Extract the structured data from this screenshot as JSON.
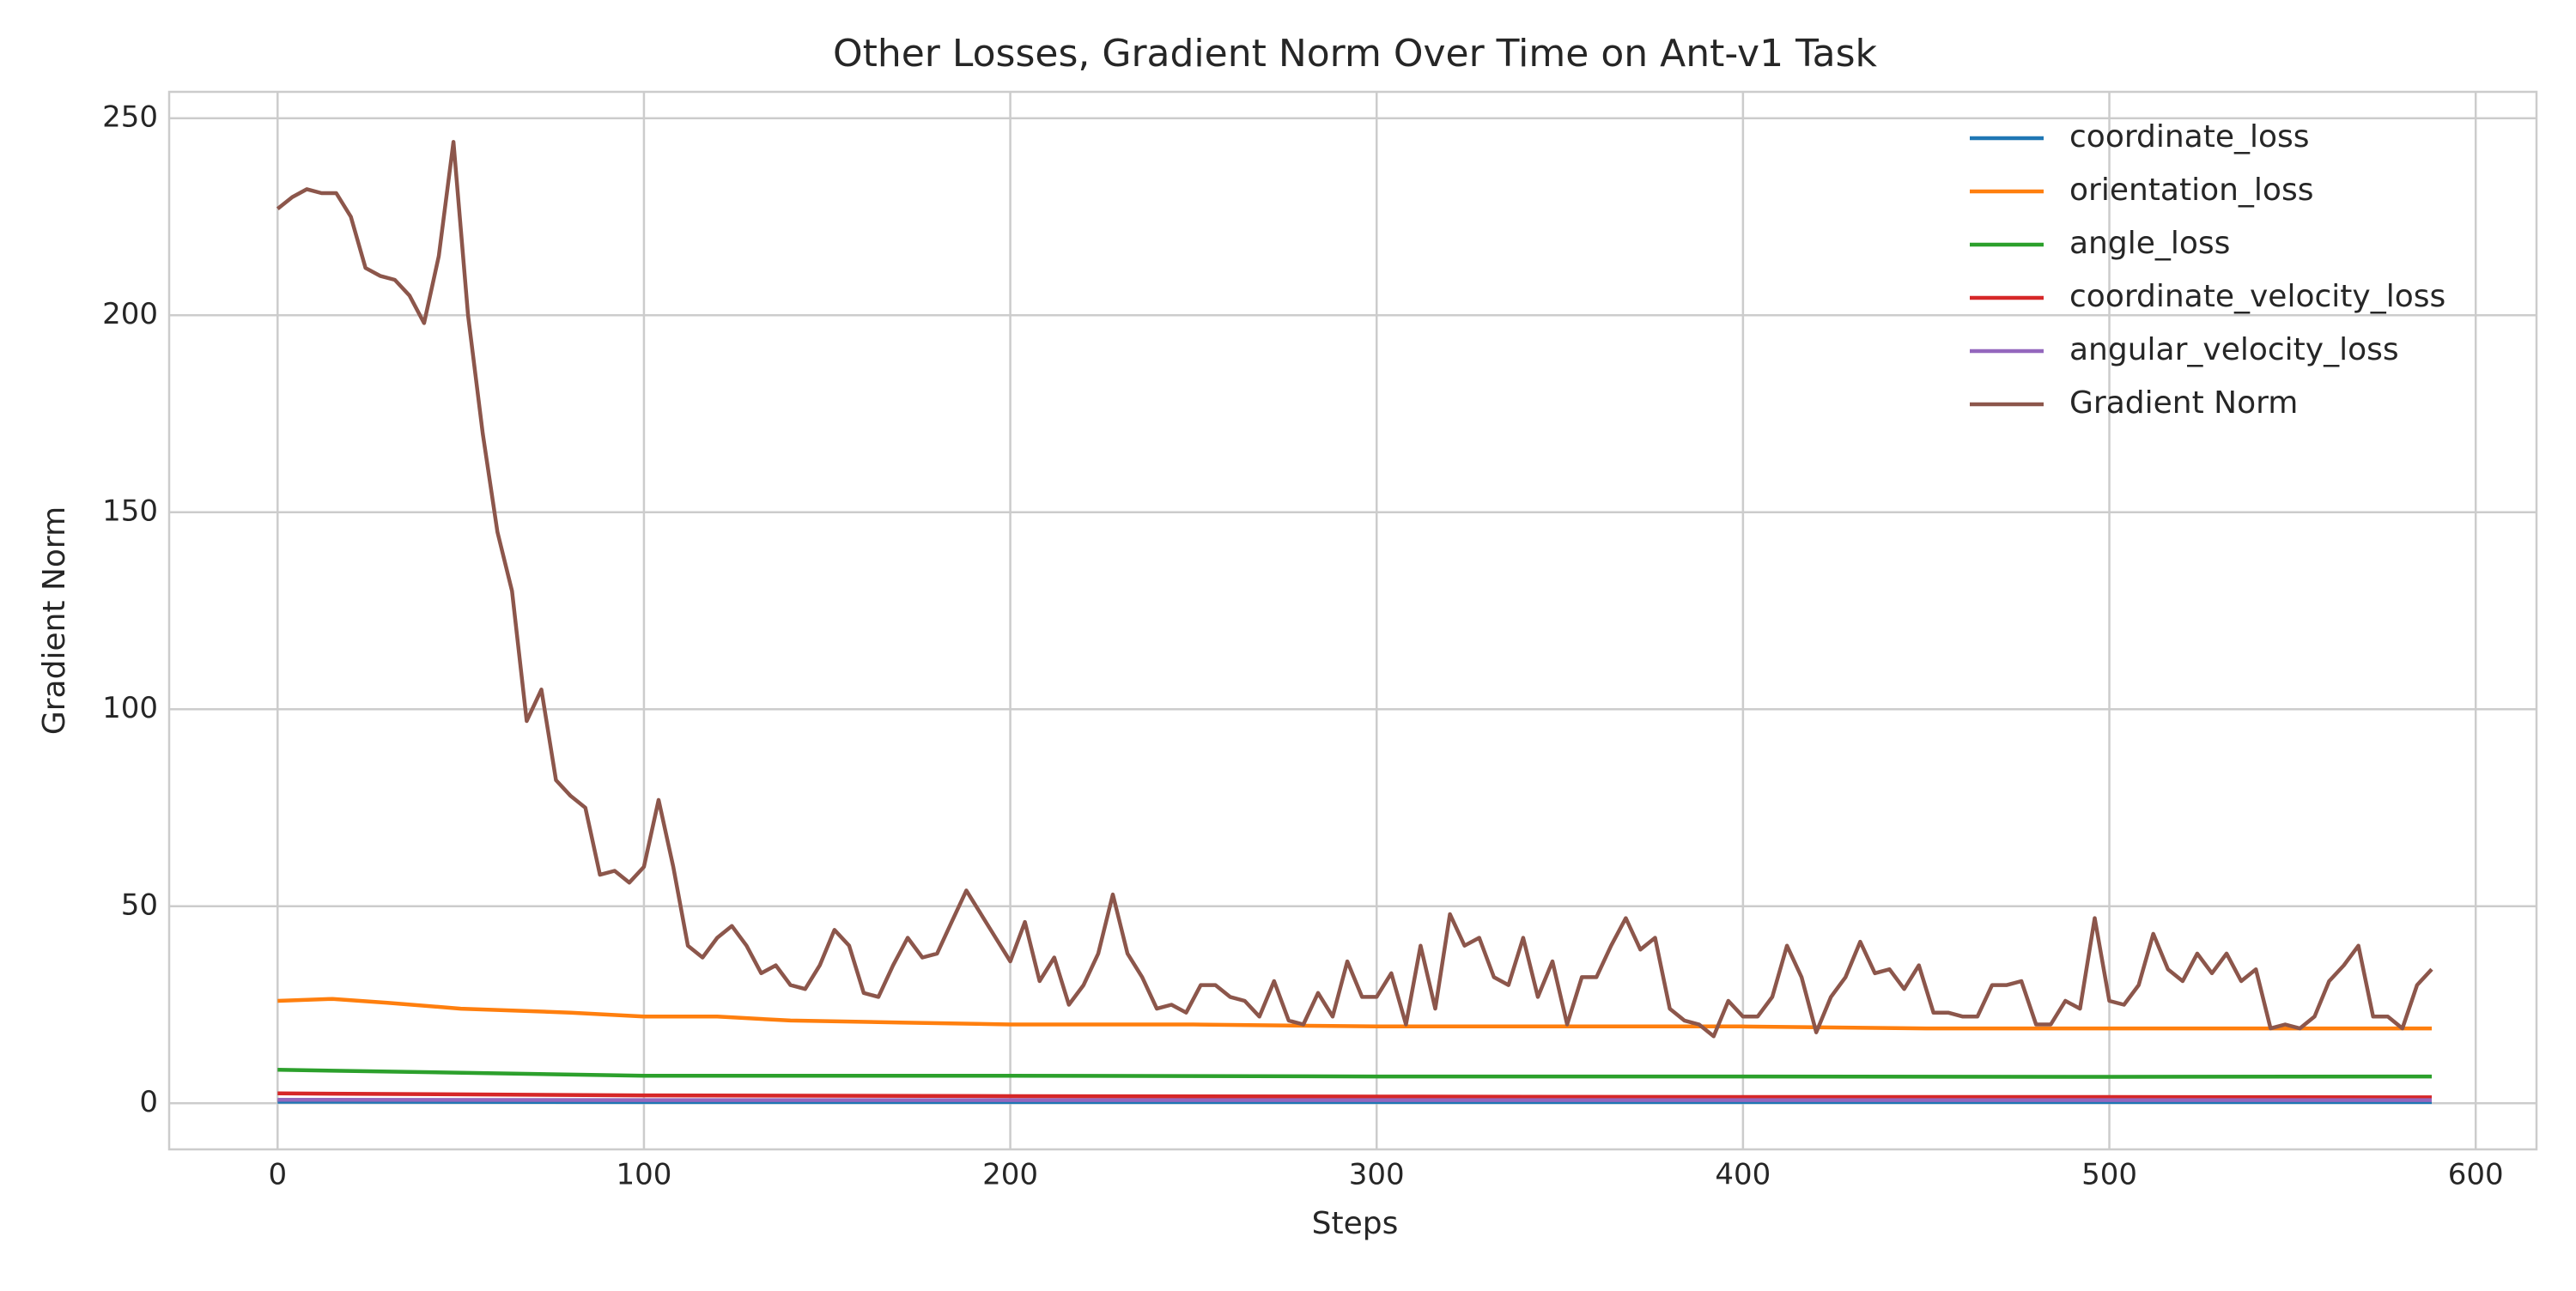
{
  "chart_data": {
    "type": "line",
    "title": "Other Losses, Gradient Norm Over Time on Ant-v1 Task",
    "xlabel": "Steps",
    "ylabel": "Gradient Norm",
    "xlim": [
      -29.6,
      616.6
    ],
    "ylim": [
      -11.7,
      256.7
    ],
    "xticks": [
      0,
      100,
      200,
      300,
      400,
      500,
      600
    ],
    "yticks": [
      0,
      50,
      100,
      150,
      200,
      250
    ],
    "grid": true,
    "legend": "upper right",
    "series": [
      {
        "name": "coordinate_loss",
        "color": "#1f77b4",
        "x": [
          0,
          100,
          200,
          300,
          400,
          500,
          588
        ],
        "values": [
          0.4,
          0.3,
          0.3,
          0.3,
          0.3,
          0.3,
          0.3
        ]
      },
      {
        "name": "orientation_loss",
        "color": "#ff7f0e",
        "x": [
          0,
          15,
          30,
          50,
          80,
          100,
          120,
          140,
          170,
          200,
          250,
          300,
          350,
          400,
          450,
          500,
          550,
          588
        ],
        "values": [
          26,
          26.5,
          25.5,
          24,
          23,
          22,
          22,
          21,
          20.5,
          20,
          20,
          19.5,
          19.5,
          19.5,
          19,
          19,
          19,
          19
        ]
      },
      {
        "name": "angle_loss",
        "color": "#2ca02c",
        "x": [
          0,
          100,
          200,
          300,
          400,
          500,
          588
        ],
        "values": [
          8.5,
          7,
          7,
          6.8,
          6.8,
          6.7,
          6.8
        ]
      },
      {
        "name": "coordinate_velocity_loss",
        "color": "#d62728",
        "x": [
          0,
          100,
          200,
          300,
          400,
          500,
          588
        ],
        "values": [
          2.5,
          2,
          1.8,
          1.7,
          1.6,
          1.6,
          1.5
        ]
      },
      {
        "name": "angular_velocity_loss",
        "color": "#9467bd",
        "x": [
          0,
          100,
          200,
          300,
          400,
          500,
          588
        ],
        "values": [
          0.9,
          0.8,
          0.8,
          0.8,
          0.8,
          0.8,
          0.8
        ]
      },
      {
        "name": "Gradient Norm",
        "color": "#8c564b",
        "x": [
          0,
          4,
          8,
          12,
          16,
          20,
          24,
          28,
          32,
          36,
          40,
          44,
          48,
          52,
          56,
          60,
          64,
          68,
          72,
          76,
          80,
          84,
          88,
          92,
          96,
          100,
          104,
          108,
          112,
          116,
          120,
          124,
          128,
          132,
          136,
          140,
          144,
          148,
          152,
          156,
          160,
          164,
          168,
          172,
          176,
          180,
          184,
          188,
          192,
          196,
          200,
          204,
          208,
          212,
          216,
          220,
          224,
          228,
          232,
          236,
          240,
          244,
          248,
          252,
          256,
          260,
          264,
          268,
          272,
          276,
          280,
          284,
          288,
          292,
          296,
          300,
          304,
          308,
          312,
          316,
          320,
          324,
          328,
          332,
          336,
          340,
          344,
          348,
          352,
          356,
          360,
          364,
          368,
          372,
          376,
          380,
          384,
          388,
          392,
          396,
          400,
          404,
          408,
          412,
          416,
          420,
          424,
          428,
          432,
          436,
          440,
          444,
          448,
          452,
          456,
          460,
          464,
          468,
          472,
          476,
          480,
          484,
          488,
          492,
          496,
          500,
          504,
          508,
          512,
          516,
          520,
          524,
          528,
          532,
          536,
          540,
          544,
          548,
          552,
          556,
          560,
          564,
          568,
          572,
          576,
          580,
          584,
          588
        ],
        "values": [
          227,
          230,
          232,
          231,
          231,
          225,
          212,
          210,
          209,
          205,
          198,
          215,
          244,
          200,
          170,
          145,
          130,
          97,
          105,
          82,
          78,
          75,
          58,
          59,
          56,
          60,
          77,
          60,
          40,
          37,
          42,
          45,
          40,
          33,
          35,
          30,
          29,
          35,
          44,
          40,
          28,
          27,
          35,
          42,
          37,
          38,
          46,
          54,
          48,
          42,
          36,
          46,
          31,
          37,
          25,
          30,
          38,
          53,
          38,
          32,
          24,
          25,
          23,
          30,
          30,
          27,
          26,
          22,
          31,
          21,
          20,
          28,
          22,
          36,
          27,
          27,
          33,
          20,
          40,
          24,
          48,
          40,
          42,
          32,
          30,
          42,
          27,
          36,
          20,
          32,
          32,
          40,
          47,
          39,
          42,
          24,
          21,
          20,
          17,
          26,
          22,
          22,
          27,
          40,
          32,
          18,
          27,
          32,
          41,
          33,
          34,
          29,
          35,
          23,
          23,
          22,
          22,
          30,
          30,
          31,
          20,
          20,
          26,
          24,
          47,
          26,
          25,
          30,
          43,
          34,
          31,
          38,
          33,
          38,
          31,
          34,
          19,
          20,
          19,
          22,
          31,
          35,
          40,
          22,
          22,
          19,
          30,
          34
        ]
      }
    ]
  }
}
